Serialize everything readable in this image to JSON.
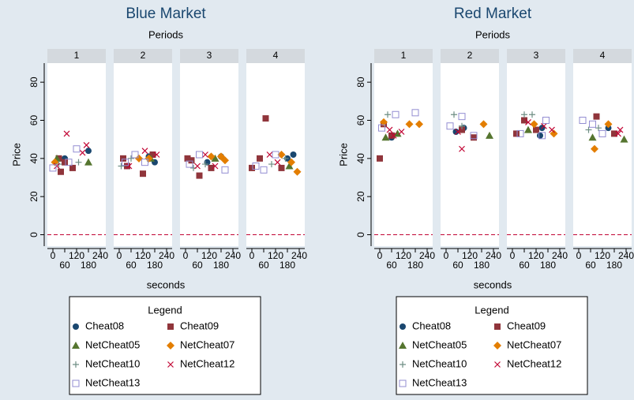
{
  "chart_data": [
    {
      "type": "scatter",
      "title": "Blue Market",
      "subtitle": "Periods",
      "panels": [
        "1",
        "2",
        "3",
        "4"
      ],
      "ylabel": "Price",
      "xlabel": "seconds",
      "xlim": [
        -28,
        268
      ],
      "ylim": [
        -6,
        90
      ],
      "xticks": [
        0,
        60,
        120,
        180,
        240
      ],
      "yticks": [
        0,
        20,
        40,
        60,
        80
      ],
      "refline": {
        "value": 0,
        "color": "#c10534"
      },
      "legend_title": "Legend",
      "series": [
        {
          "name": "Cheat08",
          "color": "#1a476f",
          "marker": "circle",
          "panels": [
            {
              "x": [
                180,
                60
              ],
              "y": [
                44,
                40
              ]
            },
            {
              "x": [
                180,
                150
              ],
              "y": [
                38,
                41
              ]
            },
            {
              "x": [
                180,
                110
              ],
              "y": [
                41,
                38
              ]
            },
            {
              "x": [
                210,
                180
              ],
              "y": [
                42,
                40
              ]
            }
          ]
        },
        {
          "name": "Cheat09",
          "color": "#90353b",
          "marker": "square",
          "panels": [
            {
              "x": [
                30,
                40,
                100,
                60
              ],
              "y": [
                40,
                33,
                35,
                38
              ]
            },
            {
              "x": [
                20,
                120,
                170,
                40
              ],
              "y": [
                40,
                32,
                42,
                36
              ]
            },
            {
              "x": [
                10,
                70,
                130,
                30
              ],
              "y": [
                40,
                31,
                35,
                39
              ]
            },
            {
              "x": [
                70,
                0,
                40,
                150
              ],
              "y": [
                61,
                35,
                40,
                35
              ]
            }
          ]
        },
        {
          "name": "NetCheat05",
          "color": "#55752f",
          "marker": "triangle",
          "panels": [
            {
              "x": [
                180,
                20
              ],
              "y": [
                38,
                40
              ]
            },
            {
              "x": [
                160
              ],
              "y": [
                40
              ]
            },
            {
              "x": [
                150
              ],
              "y": [
                40
              ]
            },
            {
              "x": [
                190
              ],
              "y": [
                36
              ]
            }
          ]
        },
        {
          "name": "NetCheat07",
          "color": "#e37e00",
          "marker": "diamond",
          "panels": [
            {
              "x": [
                10
              ],
              "y": [
                38
              ]
            },
            {
              "x": [
                100,
                150
              ],
              "y": [
                40,
                40
              ]
            },
            {
              "x": [
                130,
                180,
                200
              ],
              "y": [
                41,
                41,
                39
              ]
            },
            {
              "x": [
                200,
                230,
                150
              ],
              "y": [
                38,
                33,
                42
              ]
            }
          ]
        },
        {
          "name": "NetCheat10",
          "color": "#6e8e84",
          "marker": "plus",
          "panels": [
            {
              "x": [
                130,
                30
              ],
              "y": [
                38,
                37
              ]
            },
            {
              "x": [
                10,
                60
              ],
              "y": [
                36,
                40
              ]
            },
            {
              "x": [
                40,
                100
              ],
              "y": [
                35,
                37
              ]
            },
            {
              "x": [
                100,
                170
              ],
              "y": [
                37,
                40
              ]
            }
          ]
        },
        {
          "name": "NetCheat12",
          "color": "#c10534",
          "marker": "x",
          "panels": [
            {
              "x": [
                70,
                170,
                150,
                20
              ],
              "y": [
                53,
                47,
                43,
                36
              ]
            },
            {
              "x": [
                130,
                190,
                50
              ],
              "y": [
                44,
                42,
                36
              ]
            },
            {
              "x": [
                100,
                150,
                60
              ],
              "y": [
                42,
                36,
                36
              ]
            },
            {
              "x": [
                90,
                130
              ],
              "y": [
                42,
                38
              ]
            }
          ]
        },
        {
          "name": "NetCheat13",
          "color": "#938dd2",
          "marker": "hollow-square",
          "panels": [
            {
              "x": [
                0,
                80,
                120
              ],
              "y": [
                35,
                38,
                45
              ]
            },
            {
              "x": [
                30,
                130,
                80
              ],
              "y": [
                38,
                38,
                42
              ]
            },
            {
              "x": [
                20,
                200,
                70
              ],
              "y": [
                37,
                34,
                42
              ]
            },
            {
              "x": [
                20,
                60,
                120
              ],
              "y": [
                36,
                34,
                42
              ]
            }
          ]
        }
      ]
    },
    {
      "type": "scatter",
      "title": "Red Market",
      "subtitle": "Periods",
      "panels": [
        "1",
        "2",
        "3",
        "4"
      ],
      "ylabel": "Price",
      "xlabel": "seconds",
      "xlim": [
        -28,
        268
      ],
      "ylim": [
        -6,
        90
      ],
      "xticks": [
        0,
        60,
        120,
        180,
        240
      ],
      "yticks": [
        0,
        20,
        40,
        60,
        80
      ],
      "refline": {
        "value": 0,
        "color": "#c10534"
      },
      "legend_title": "Legend",
      "series": [
        {
          "name": "Cheat08",
          "color": "#1a476f",
          "marker": "circle",
          "panels": [
            {
              "x": [
                60
              ],
              "y": [
                51
              ]
            },
            {
              "x": [
                50,
                90
              ],
              "y": [
                54,
                56
              ]
            },
            {
              "x": [
                140,
                150
              ],
              "y": [
                52,
                56
              ]
            },
            {
              "x": [
                150
              ],
              "y": [
                56
              ]
            }
          ]
        },
        {
          "name": "Cheat09",
          "color": "#90353b",
          "marker": "square",
          "panels": [
            {
              "x": [
                0,
                60,
                20
              ],
              "y": [
                40,
                52,
                58
              ]
            },
            {
              "x": [
                80,
                140
              ],
              "y": [
                55,
                51
              ]
            },
            {
              "x": [
                20,
                60,
                120
              ],
              "y": [
                53,
                60,
                55
              ]
            },
            {
              "x": [
                90,
                180
              ],
              "y": [
                62,
                53
              ]
            }
          ]
        },
        {
          "name": "NetCheat05",
          "color": "#55752f",
          "marker": "triangle",
          "panels": [
            {
              "x": [
                30,
                90
              ],
              "y": [
                51,
                53
              ]
            },
            {
              "x": [
                220
              ],
              "y": [
                52
              ]
            },
            {
              "x": [
                80
              ],
              "y": [
                55
              ]
            },
            {
              "x": [
                70,
                230
              ],
              "y": [
                51,
                50
              ]
            }
          ]
        },
        {
          "name": "NetCheat07",
          "color": "#e37e00",
          "marker": "diamond",
          "panels": [
            {
              "x": [
                20,
                150,
                200
              ],
              "y": [
                59,
                58,
                58
              ]
            },
            {
              "x": [
                190
              ],
              "y": [
                58
              ]
            },
            {
              "x": [
                110,
                210
              ],
              "y": [
                58,
                53
              ]
            },
            {
              "x": [
                80,
                150
              ],
              "y": [
                45,
                58
              ]
            }
          ]
        },
        {
          "name": "NetCheat10",
          "color": "#6e8e84",
          "marker": "plus",
          "panels": [
            {
              "x": [
                40
              ],
              "y": [
                63
              ]
            },
            {
              "x": [
                40,
                80
              ],
              "y": [
                63,
                57
              ]
            },
            {
              "x": [
                60,
                100
              ],
              "y": [
                63,
                63
              ]
            },
            {
              "x": [
                50,
                100
              ],
              "y": [
                55,
                56
              ]
            }
          ]
        },
        {
          "name": "NetCheat12",
          "color": "#c10534",
          "marker": "x",
          "panels": [
            {
              "x": [
                50,
                110,
                70
              ],
              "y": [
                55,
                54,
                52
              ]
            },
            {
              "x": [
                80,
                60
              ],
              "y": [
                45,
                54
              ]
            },
            {
              "x": [
                80,
                200,
                160
              ],
              "y": [
                59,
                55,
                57
              ]
            },
            {
              "x": [
                200,
                210
              ],
              "y": [
                53,
                55
              ]
            }
          ]
        },
        {
          "name": "NetCheat13",
          "color": "#938dd2",
          "marker": "hollow-square",
          "panels": [
            {
              "x": [
                10,
                80,
                180
              ],
              "y": [
                56,
                63,
                64
              ]
            },
            {
              "x": [
                20,
                80,
                140
              ],
              "y": [
                57,
                62,
                52
              ]
            },
            {
              "x": [
                40,
                170,
                150
              ],
              "y": [
                53,
                60,
                52
              ]
            },
            {
              "x": [
                20,
                70,
                120
              ],
              "y": [
                60,
                58,
                53
              ]
            }
          ]
        }
      ]
    }
  ]
}
